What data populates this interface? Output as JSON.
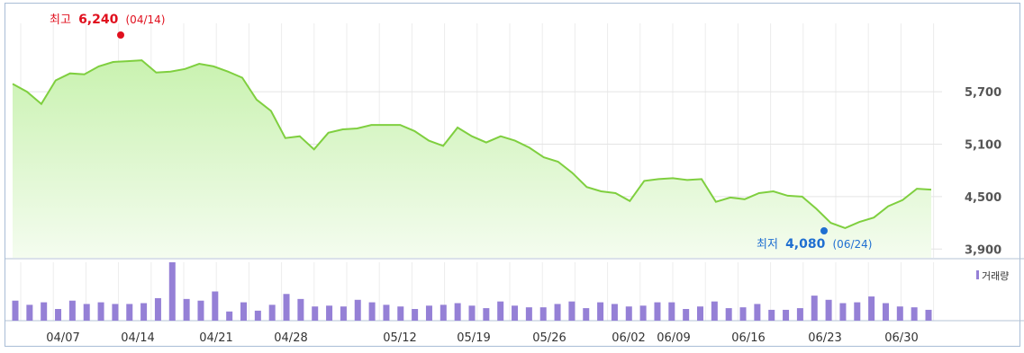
{
  "chart_data": [
    {
      "type": "area",
      "title": "",
      "ylim": [
        3800,
        6400
      ],
      "y_ticks": [
        "5,700",
        "5,100",
        "4,500",
        "3,900"
      ],
      "y_tick_values": [
        5700,
        5100,
        4500,
        3900
      ],
      "grid": true,
      "color": "#7fcf3f",
      "fill_top": "#c9f2b0",
      "fill_bottom": "#f4fcef",
      "values": [
        5790,
        5700,
        5560,
        5830,
        5910,
        5900,
        5990,
        6040,
        6050,
        6060,
        5920,
        5930,
        5960,
        6020,
        5990,
        5930,
        5860,
        5610,
        5480,
        5170,
        5190,
        5040,
        5230,
        5270,
        5280,
        5320,
        5320,
        5320,
        5250,
        5140,
        5080,
        5290,
        5190,
        5120,
        5190,
        5140,
        5060,
        4950,
        4900,
        4770,
        4610,
        4560,
        4540,
        4450,
        4680,
        4700,
        4710,
        4690,
        4700,
        4440,
        4490,
        4470,
        4540,
        4560,
        4510,
        4500,
        4360,
        4200,
        4140,
        4210,
        4260,
        4390,
        4460,
        4590,
        4580
      ]
    },
    {
      "type": "bar",
      "values": [
        24,
        19,
        22,
        14,
        24,
        20,
        22,
        20,
        20,
        21,
        27,
        70,
        26,
        24,
        35,
        11,
        22,
        12,
        19,
        32,
        26,
        17,
        18,
        17,
        25,
        22,
        19,
        17,
        14,
        18,
        19,
        21,
        18,
        15,
        23,
        18,
        16,
        16,
        20,
        23,
        15,
        22,
        20,
        17,
        18,
        22,
        22,
        14,
        17,
        23,
        15,
        16,
        20,
        13,
        13,
        15,
        30,
        25,
        21,
        22,
        29,
        21,
        17,
        16,
        13
      ],
      "legend": "거래량",
      "color": "#9580d6"
    }
  ],
  "x_ticks": [
    "04/07",
    "04/14",
    "04/21",
    "04/28",
    "05/12",
    "05/19",
    "05/26",
    "06/02",
    "06/09",
    "06/16",
    "06/23",
    "06/30"
  ],
  "annotations": {
    "high": {
      "prefix": "최고",
      "value": "6,240",
      "date": "(04/14)",
      "color": "#e0101e"
    },
    "low": {
      "prefix": "최저",
      "value": "4,080",
      "date": "(06/24)",
      "color": "#1f6fd1"
    }
  }
}
